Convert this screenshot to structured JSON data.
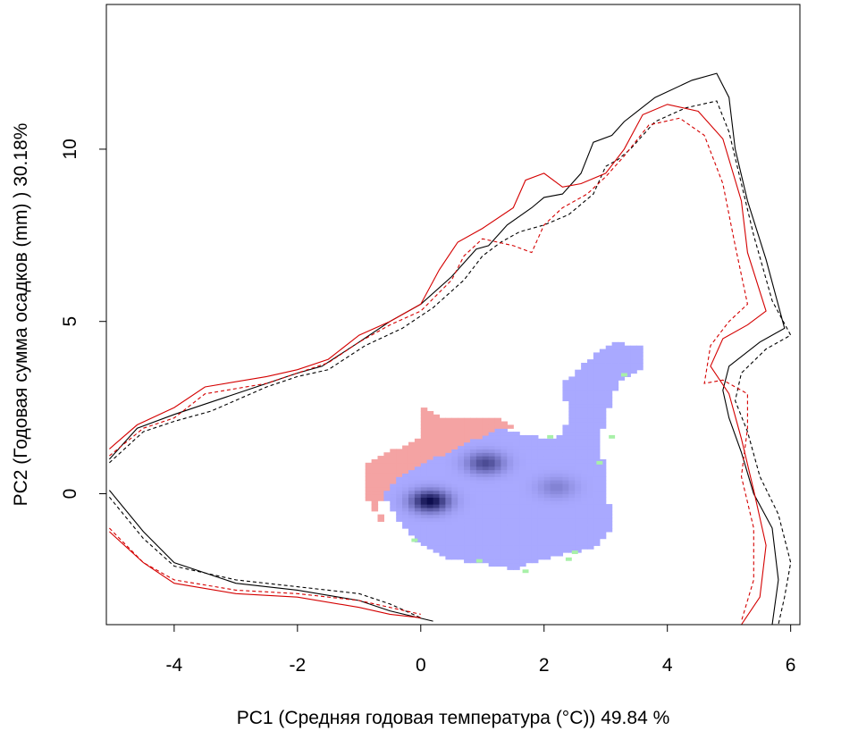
{
  "chart_data": {
    "type": "contour",
    "xlabel": "PC1 (Средняя годовая температура (°C)) 49.84 %",
    "ylabel": "PC2 (Годовая сумма осадков  (mm) ) 30.18%",
    "xlim": [
      -5.1,
      6.15
    ],
    "ylim": [
      -3.8,
      14.2
    ],
    "xticks": [
      -4,
      -2,
      0,
      2,
      4,
      6
    ],
    "yticks": [
      0,
      5,
      10
    ],
    "grid": false,
    "legend": "none",
    "colors": {
      "outline_black": "#000000",
      "outline_red": "#d40000",
      "density_blue": "#a9a9ff",
      "density_dark": "#0a0a4a",
      "only_red_area": "#f4a3a3",
      "only_green_area": "#a8f0a8"
    },
    "series": [
      {
        "style": "black-solid",
        "points": [
          [
            -5.05,
            1.0
          ],
          [
            -4.6,
            1.9
          ],
          [
            -4.0,
            2.3
          ],
          [
            -3.5,
            2.6
          ],
          [
            -2.5,
            3.2
          ],
          [
            -2.0,
            3.5
          ],
          [
            -1.6,
            3.7
          ],
          [
            -1.0,
            4.4
          ],
          [
            -0.5,
            5.0
          ],
          [
            0.0,
            5.5
          ],
          [
            0.5,
            6.3
          ],
          [
            0.9,
            7.1
          ],
          [
            1.1,
            7.2
          ],
          [
            1.4,
            7.8
          ],
          [
            1.8,
            8.3
          ],
          [
            2.0,
            8.6
          ],
          [
            2.3,
            8.7
          ],
          [
            2.6,
            9.3
          ],
          [
            2.8,
            10.2
          ],
          [
            3.1,
            10.4
          ],
          [
            3.3,
            10.8
          ],
          [
            3.8,
            11.5
          ],
          [
            4.4,
            12.0
          ],
          [
            4.8,
            12.2
          ],
          [
            5.0,
            11.5
          ],
          [
            5.1,
            10.0
          ],
          [
            5.3,
            8.5
          ],
          [
            5.6,
            6.8
          ],
          [
            5.9,
            4.8
          ],
          [
            5.5,
            4.4
          ],
          [
            5.0,
            3.7
          ],
          [
            4.9,
            3.0
          ],
          [
            5.0,
            2.2
          ],
          [
            5.2,
            1.2
          ],
          [
            5.4,
            0.0
          ],
          [
            5.7,
            -1.0
          ],
          [
            5.8,
            -2.5
          ],
          [
            5.7,
            -3.8
          ]
        ]
      },
      {
        "style": "black-solid",
        "points": [
          [
            -5.05,
            0.1
          ],
          [
            -4.5,
            -1.1
          ],
          [
            -4.0,
            -2.0
          ],
          [
            -3.0,
            -2.6
          ],
          [
            -2.0,
            -2.8
          ],
          [
            -1.0,
            -3.1
          ],
          [
            -0.5,
            -3.4
          ],
          [
            0.2,
            -3.7
          ]
        ]
      },
      {
        "style": "black-dashed",
        "points": [
          [
            -5.05,
            0.9
          ],
          [
            -4.5,
            1.8
          ],
          [
            -4.0,
            2.1
          ],
          [
            -3.4,
            2.4
          ],
          [
            -2.5,
            3.1
          ],
          [
            -2.0,
            3.4
          ],
          [
            -1.5,
            3.6
          ],
          [
            -0.9,
            4.3
          ],
          [
            -0.3,
            4.8
          ],
          [
            0.2,
            5.4
          ],
          [
            0.7,
            6.2
          ],
          [
            1.0,
            6.9
          ],
          [
            1.3,
            7.3
          ],
          [
            1.6,
            7.6
          ],
          [
            2.0,
            7.8
          ],
          [
            2.4,
            8.1
          ],
          [
            2.8,
            8.7
          ],
          [
            3.0,
            9.5
          ],
          [
            3.2,
            9.7
          ],
          [
            3.4,
            10.0
          ],
          [
            3.8,
            10.8
          ],
          [
            4.3,
            11.2
          ],
          [
            4.8,
            11.4
          ],
          [
            5.0,
            10.5
          ],
          [
            5.2,
            9.0
          ],
          [
            5.4,
            7.5
          ],
          [
            5.7,
            5.6
          ],
          [
            6.0,
            4.6
          ],
          [
            5.6,
            4.2
          ],
          [
            5.2,
            3.5
          ],
          [
            5.1,
            2.7
          ],
          [
            5.3,
            1.8
          ],
          [
            5.5,
            0.5
          ],
          [
            5.8,
            -0.6
          ],
          [
            6.0,
            -2.0
          ],
          [
            5.9,
            -3.0
          ],
          [
            5.8,
            -3.8
          ]
        ]
      },
      {
        "style": "black-dashed",
        "points": [
          [
            -5.05,
            -0.1
          ],
          [
            -4.5,
            -1.3
          ],
          [
            -4.0,
            -2.1
          ],
          [
            -3.0,
            -2.5
          ],
          [
            -2.0,
            -2.7
          ],
          [
            -1.0,
            -2.9
          ],
          [
            -0.5,
            -3.2
          ],
          [
            0.0,
            -3.6
          ]
        ]
      },
      {
        "style": "red-solid",
        "points": [
          [
            -5.05,
            1.3
          ],
          [
            -4.6,
            2.0
          ],
          [
            -4.0,
            2.5
          ],
          [
            -3.5,
            3.1
          ],
          [
            -2.5,
            3.4
          ],
          [
            -2.0,
            3.6
          ],
          [
            -1.5,
            3.9
          ],
          [
            -1.0,
            4.6
          ],
          [
            -0.5,
            5.0
          ],
          [
            0.0,
            5.5
          ],
          [
            0.3,
            6.5
          ],
          [
            0.6,
            7.3
          ],
          [
            1.0,
            7.7
          ],
          [
            1.5,
            8.3
          ],
          [
            1.7,
            9.1
          ],
          [
            2.0,
            9.3
          ],
          [
            2.3,
            8.9
          ],
          [
            2.6,
            9.0
          ],
          [
            3.0,
            9.3
          ],
          [
            3.3,
            10.0
          ],
          [
            3.6,
            11.0
          ],
          [
            4.0,
            11.3
          ],
          [
            4.5,
            11.1
          ],
          [
            4.9,
            10.3
          ],
          [
            5.2,
            8.5
          ],
          [
            5.3,
            7.0
          ],
          [
            5.6,
            5.3
          ],
          [
            5.3,
            4.9
          ],
          [
            4.9,
            4.5
          ],
          [
            4.7,
            3.7
          ],
          [
            5.0,
            2.9
          ],
          [
            5.2,
            1.6
          ],
          [
            5.4,
            0.1
          ],
          [
            5.6,
            -1.5
          ],
          [
            5.5,
            -3.0
          ],
          [
            5.2,
            -3.8
          ]
        ]
      },
      {
        "style": "red-solid",
        "points": [
          [
            -5.05,
            -1.1
          ],
          [
            -4.5,
            -2.0
          ],
          [
            -4.0,
            -2.6
          ],
          [
            -3.0,
            -2.9
          ],
          [
            -2.0,
            -3.0
          ],
          [
            -1.0,
            -3.3
          ],
          [
            -0.5,
            -3.5
          ],
          [
            0.0,
            -3.6
          ]
        ]
      },
      {
        "style": "red-dashed",
        "points": [
          [
            -5.05,
            1.1
          ],
          [
            -4.5,
            1.9
          ],
          [
            -4.0,
            2.2
          ],
          [
            -3.5,
            2.9
          ],
          [
            -2.5,
            3.2
          ],
          [
            -2.0,
            3.5
          ],
          [
            -1.5,
            3.8
          ],
          [
            -1.0,
            4.4
          ],
          [
            -0.5,
            4.9
          ],
          [
            0.0,
            5.3
          ],
          [
            0.5,
            6.2
          ],
          [
            0.7,
            6.9
          ],
          [
            1.0,
            7.4
          ],
          [
            1.5,
            7.2
          ],
          [
            1.8,
            7.0
          ],
          [
            2.0,
            7.8
          ],
          [
            2.3,
            8.3
          ],
          [
            2.7,
            8.7
          ],
          [
            3.0,
            9.2
          ],
          [
            3.3,
            9.8
          ],
          [
            3.7,
            10.7
          ],
          [
            4.2,
            10.9
          ],
          [
            4.6,
            10.4
          ],
          [
            4.9,
            9.0
          ],
          [
            5.1,
            7.2
          ],
          [
            5.3,
            5.5
          ],
          [
            5.0,
            5.0
          ],
          [
            4.7,
            4.3
          ],
          [
            4.6,
            3.2
          ],
          [
            4.9,
            3.3
          ],
          [
            5.3,
            2.9
          ],
          [
            5.3,
            1.9
          ],
          [
            5.2,
            0.5
          ],
          [
            5.4,
            -1.0
          ],
          [
            5.4,
            -2.5
          ],
          [
            5.2,
            -3.7
          ]
        ]
      },
      {
        "style": "red-dashed",
        "points": [
          [
            -5.05,
            -1.0
          ],
          [
            -4.5,
            -2.0
          ],
          [
            -4.0,
            -2.5
          ],
          [
            -3.0,
            -2.8
          ],
          [
            -2.0,
            -2.9
          ],
          [
            -1.0,
            -3.1
          ],
          [
            -0.5,
            -3.3
          ],
          [
            0.0,
            -3.5
          ]
        ]
      }
    ],
    "regions": [
      {
        "fill": "only_red_area",
        "points": [
          [
            -0.9,
            0.9
          ],
          [
            -0.4,
            1.3
          ],
          [
            0.0,
            1.6
          ],
          [
            0.0,
            2.5
          ],
          [
            0.4,
            2.2
          ],
          [
            1.2,
            2.2
          ],
          [
            1.5,
            2.0
          ],
          [
            1.0,
            1.5
          ],
          [
            0.3,
            1.0
          ],
          [
            -0.3,
            0.5
          ],
          [
            -0.7,
            -0.3
          ],
          [
            -0.6,
            -0.9
          ],
          [
            -0.9,
            0.0
          ]
        ]
      },
      {
        "fill": "density_blue",
        "points": [
          [
            -0.6,
            0.0
          ],
          [
            -0.3,
            0.6
          ],
          [
            0.3,
            1.1
          ],
          [
            0.9,
            1.6
          ],
          [
            1.3,
            1.9
          ],
          [
            1.7,
            1.7
          ],
          [
            2.1,
            1.6
          ],
          [
            2.3,
            1.8
          ],
          [
            2.4,
            2.2
          ],
          [
            2.3,
            3.2
          ],
          [
            2.6,
            3.7
          ],
          [
            2.8,
            4.0
          ],
          [
            3.1,
            4.4
          ],
          [
            3.6,
            4.3
          ],
          [
            3.6,
            3.7
          ],
          [
            3.3,
            3.4
          ],
          [
            3.1,
            2.9
          ],
          [
            3.0,
            2.1
          ],
          [
            2.9,
            1.6
          ],
          [
            3.0,
            0.5
          ],
          [
            3.1,
            -1.0
          ],
          [
            2.8,
            -1.6
          ],
          [
            2.4,
            -1.7
          ],
          [
            2.0,
            -1.9
          ],
          [
            1.5,
            -2.2
          ],
          [
            1.0,
            -2.0
          ],
          [
            0.5,
            -1.9
          ],
          [
            0.0,
            -1.5
          ],
          [
            -0.4,
            -0.7
          ]
        ]
      }
    ],
    "density_peaks": [
      {
        "x": 0.15,
        "y": -0.2,
        "strength": 1.0
      },
      {
        "x": 1.05,
        "y": 0.9,
        "strength": 0.6
      },
      {
        "x": 2.2,
        "y": 0.2,
        "strength": 0.25
      }
    ],
    "green_cells": [
      [
        0.95,
        -1.95
      ],
      [
        1.7,
        -2.25
      ],
      [
        2.4,
        -1.9
      ],
      [
        2.5,
        -1.7
      ],
      [
        2.9,
        0.9
      ],
      [
        3.1,
        1.65
      ],
      [
        3.3,
        3.45
      ],
      [
        -0.1,
        -1.35
      ],
      [
        2.1,
        1.65
      ]
    ]
  }
}
